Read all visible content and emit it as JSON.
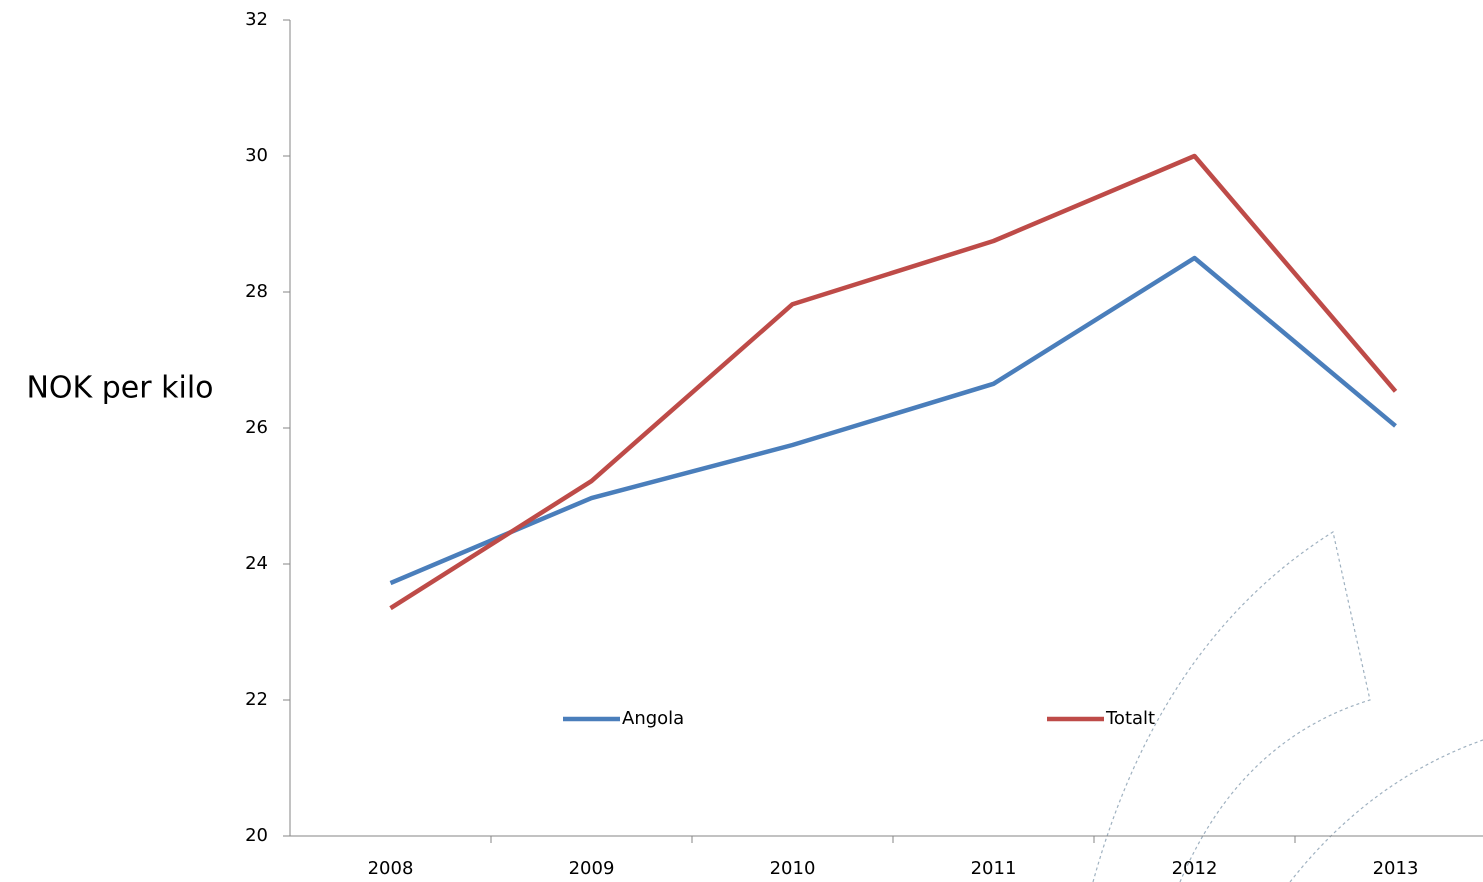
{
  "chart_data": {
    "type": "line",
    "y_label": "NOK per kilo",
    "categories": [
      "2008",
      "2009",
      "2010",
      "2011",
      "2012",
      "2013"
    ],
    "series": [
      {
        "name": "Angola",
        "color": "#4a7ebb",
        "values": [
          23.72,
          24.97,
          25.75,
          26.65,
          28.5,
          26.03
        ]
      },
      {
        "name": "Totalt",
        "color": "#be4b48",
        "values": [
          23.35,
          25.22,
          27.82,
          28.75,
          30,
          26.54
        ]
      }
    ],
    "ylim": [
      20,
      32
    ],
    "yticks": [
      20,
      22,
      24,
      26,
      28,
      30,
      32
    ],
    "grid": false,
    "legend": "bottom"
  }
}
